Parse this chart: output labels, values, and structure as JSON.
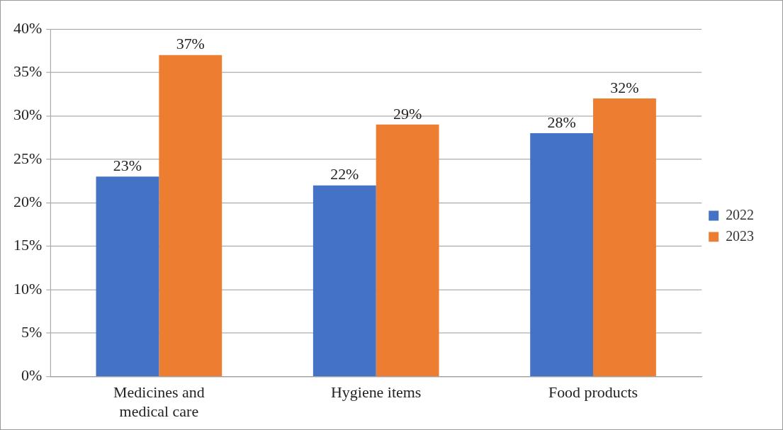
{
  "chart_data": {
    "type": "bar",
    "categories": [
      "Medicines and medical care",
      "Hygiene items",
      "Food products"
    ],
    "series": [
      {
        "name": "2022",
        "color": "#4472c4",
        "values": [
          23,
          22,
          28
        ],
        "value_labels": [
          "23%",
          "22%",
          "28%"
        ]
      },
      {
        "name": "2023",
        "color": "#ed7d31",
        "values": [
          37,
          29,
          32
        ],
        "value_labels": [
          "37%",
          "29%",
          "32%"
        ]
      }
    ],
    "ylim": [
      0,
      40
    ],
    "yticks": [
      {
        "value": 0,
        "label": "0%"
      },
      {
        "value": 5,
        "label": "5%"
      },
      {
        "value": 10,
        "label": "10%"
      },
      {
        "value": 15,
        "label": "15%"
      },
      {
        "value": 20,
        "label": "20%"
      },
      {
        "value": 25,
        "label": "25%"
      },
      {
        "value": 30,
        "label": "30%"
      },
      {
        "value": 35,
        "label": "35%"
      },
      {
        "value": 40,
        "label": "40%"
      }
    ],
    "grid": "y",
    "legend": "right"
  }
}
